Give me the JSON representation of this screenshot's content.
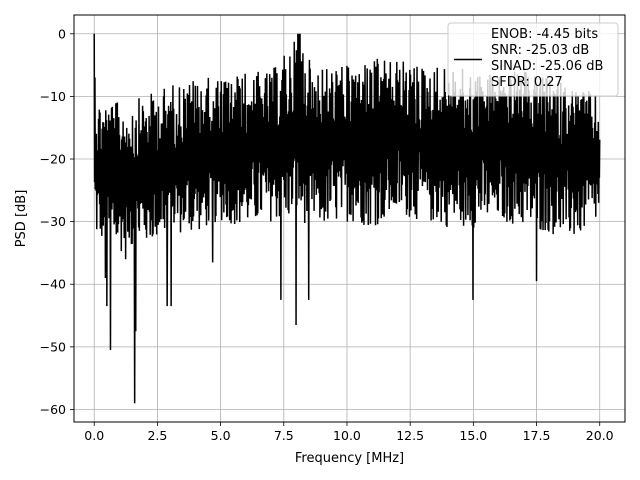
{
  "chart_data": {
    "type": "line",
    "xlabel": "Frequency [MHz]",
    "ylabel": "PSD [dB]",
    "xlim": [
      -0.8,
      21.0
    ],
    "ylim": [
      -62,
      3
    ],
    "xticks": [
      0.0,
      2.5,
      5.0,
      7.5,
      10.0,
      12.5,
      15.0,
      17.5,
      20.0
    ],
    "xtick_labels": [
      "0.0",
      "2.5",
      "5.0",
      "7.5",
      "10.0",
      "12.5",
      "15.0",
      "17.5",
      "20.0"
    ],
    "yticks": [
      0,
      -10,
      -20,
      -30,
      -40,
      -50,
      -60
    ],
    "ytick_labels": [
      "0",
      "−10",
      "−20",
      "−30",
      "−40",
      "−50",
      "−60"
    ],
    "grid": true,
    "legend_position": "top-right",
    "series_color": "#000000",
    "legend_lines": [
      "ENOB: -4.45 bits",
      "SNR: -25.03 dB",
      "SINAD: -25.06 dB",
      "SFDR: 0.27"
    ],
    "series": [
      {
        "x_start": 0.0,
        "x_end": 20.0,
        "envelope_top": [
          [
            0.0,
            0
          ],
          [
            0.1,
            -10
          ],
          [
            1.0,
            -11
          ],
          [
            2.0,
            -10
          ],
          [
            3.0,
            -8
          ],
          [
            4.0,
            -7
          ],
          [
            5.0,
            -7
          ],
          [
            6.0,
            -6
          ],
          [
            7.0,
            -6
          ],
          [
            8.1,
            0
          ],
          [
            8.5,
            -4
          ],
          [
            9.0,
            -5
          ],
          [
            10.0,
            -5
          ],
          [
            11.0,
            -4
          ],
          [
            12.0,
            -4
          ],
          [
            13.0,
            -5
          ],
          [
            14.0,
            -5
          ],
          [
            15.0,
            -6
          ],
          [
            16.0,
            -6
          ],
          [
            17.0,
            -6
          ],
          [
            18.0,
            -7
          ],
          [
            19.0,
            -8
          ],
          [
            20.0,
            -10
          ]
        ],
        "envelope_bottom": [
          [
            0.1,
            -33
          ],
          [
            1.0,
            -35
          ],
          [
            2.0,
            -34
          ],
          [
            3.0,
            -32
          ],
          [
            4.0,
            -32
          ],
          [
            5.0,
            -30
          ],
          [
            6.0,
            -31
          ],
          [
            7.0,
            -30
          ],
          [
            8.0,
            -30
          ],
          [
            9.0,
            -31
          ],
          [
            10.0,
            -30
          ],
          [
            11.0,
            -31
          ],
          [
            12.0,
            -29
          ],
          [
            13.0,
            -30
          ],
          [
            14.0,
            -31
          ],
          [
            15.0,
            -31
          ],
          [
            16.0,
            -30
          ],
          [
            17.0,
            -31
          ],
          [
            18.0,
            -32
          ],
          [
            19.0,
            -33
          ],
          [
            20.0,
            -30
          ]
        ],
        "dips": [
          [
            0.45,
            -39
          ],
          [
            0.5,
            -43.5
          ],
          [
            0.65,
            -50.5
          ],
          [
            1.25,
            -36
          ],
          [
            1.6,
            -59
          ],
          [
            1.65,
            -47.5
          ],
          [
            2.9,
            -43.5
          ],
          [
            3.05,
            -43.5
          ],
          [
            4.7,
            -36.5
          ],
          [
            7.4,
            -42.5
          ],
          [
            8.0,
            -46.5
          ],
          [
            8.5,
            -42.5
          ],
          [
            15.0,
            -42.5
          ],
          [
            17.5,
            -39.5
          ]
        ]
      }
    ]
  }
}
